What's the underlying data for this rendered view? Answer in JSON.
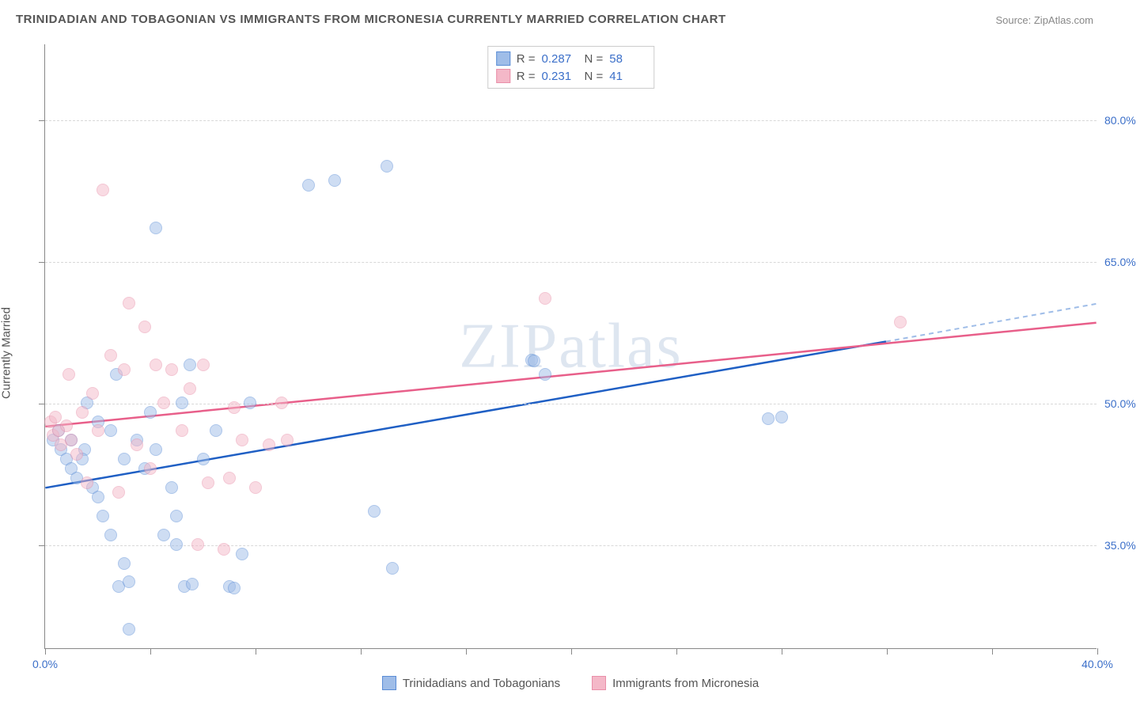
{
  "title": "TRINIDADIAN AND TOBAGONIAN VS IMMIGRANTS FROM MICRONESIA CURRENTLY MARRIED CORRELATION CHART",
  "source": "Source: ZipAtlas.com",
  "watermark": "ZIPatlas",
  "y_axis_label": "Currently Married",
  "chart": {
    "type": "scatter",
    "xlim": [
      0,
      40
    ],
    "ylim": [
      24,
      88
    ],
    "x_ticks": [
      0,
      4,
      8,
      12,
      16,
      20,
      24,
      28,
      32,
      36,
      40
    ],
    "x_tick_labels": {
      "0": "0.0%",
      "40": "40.0%"
    },
    "y_grid": [
      35,
      50,
      65,
      80
    ],
    "y_tick_labels": {
      "35": "35.0%",
      "50": "50.0%",
      "65": "65.0%",
      "80": "80.0%"
    },
    "background_color": "#ffffff",
    "grid_color": "#d8d8d8",
    "axis_color": "#888888",
    "tick_label_color": "#3b6fc9",
    "point_radius": 8,
    "point_opacity": 0.5,
    "series": [
      {
        "key": "trinidadian",
        "label": "Trinidadians and Tobagonians",
        "fill": "#9fbde8",
        "stroke": "#5b8dd6",
        "trend_color": "#1f5fc4",
        "trend_dash_color": "#9fbde8",
        "R": "0.287",
        "N": "58",
        "trend": {
          "x1": 0,
          "y1": 41,
          "x2": 32,
          "y2": 56.5,
          "x2_ext": 40,
          "y2_ext": 60.5
        },
        "points": [
          [
            0.3,
            46
          ],
          [
            0.6,
            45
          ],
          [
            0.5,
            47
          ],
          [
            0.8,
            44
          ],
          [
            1.0,
            43
          ],
          [
            1.0,
            46
          ],
          [
            1.2,
            42
          ],
          [
            1.5,
            45
          ],
          [
            1.4,
            44
          ],
          [
            1.8,
            41
          ],
          [
            2.0,
            40
          ],
          [
            2.2,
            38
          ],
          [
            2.5,
            36
          ],
          [
            2.8,
            30.5
          ],
          [
            3.0,
            33
          ],
          [
            3.2,
            31
          ],
          [
            1.6,
            50
          ],
          [
            2.0,
            48
          ],
          [
            2.5,
            47
          ],
          [
            2.7,
            53
          ],
          [
            3.0,
            44
          ],
          [
            3.5,
            46
          ],
          [
            3.8,
            43
          ],
          [
            4.0,
            49
          ],
          [
            4.2,
            45
          ],
          [
            4.5,
            36
          ],
          [
            5.0,
            35
          ],
          [
            5.3,
            30.5
          ],
          [
            5.6,
            30.8
          ],
          [
            5.0,
            38
          ],
          [
            4.8,
            41
          ],
          [
            5.2,
            50
          ],
          [
            5.5,
            54
          ],
          [
            6.0,
            44
          ],
          [
            6.5,
            47
          ],
          [
            7.0,
            30.5
          ],
          [
            7.2,
            30.4
          ],
          [
            7.5,
            34
          ],
          [
            7.8,
            50
          ],
          [
            3.2,
            26
          ],
          [
            4.2,
            68.5
          ],
          [
            11.0,
            73.5
          ],
          [
            10.0,
            73
          ],
          [
            13.0,
            75
          ],
          [
            12.5,
            38.5
          ],
          [
            13.2,
            32.5
          ],
          [
            18.5,
            54.5
          ],
          [
            18.6,
            54.4
          ],
          [
            19.0,
            53
          ],
          [
            28.0,
            48.5
          ],
          [
            27.5,
            48.3
          ]
        ]
      },
      {
        "key": "micronesia",
        "label": "Immigrants from Micronesia",
        "fill": "#f4b8c8",
        "stroke": "#e98fa9",
        "trend_color": "#e85f8a",
        "R": "0.231",
        "N": "41",
        "trend": {
          "x1": 0,
          "y1": 47.5,
          "x2": 40,
          "y2": 58.5
        },
        "points": [
          [
            0.2,
            48
          ],
          [
            0.3,
            46.5
          ],
          [
            0.4,
            48.5
          ],
          [
            0.5,
            47
          ],
          [
            0.6,
            45.5
          ],
          [
            0.8,
            47.5
          ],
          [
            0.9,
            53
          ],
          [
            1.0,
            46
          ],
          [
            1.2,
            44.5
          ],
          [
            1.4,
            49
          ],
          [
            1.6,
            41.5
          ],
          [
            1.8,
            51
          ],
          [
            2.0,
            47
          ],
          [
            2.2,
            72.5
          ],
          [
            2.5,
            55
          ],
          [
            2.8,
            40.5
          ],
          [
            3.0,
            53.5
          ],
          [
            3.2,
            60.5
          ],
          [
            3.5,
            45.5
          ],
          [
            3.8,
            58
          ],
          [
            4.0,
            43
          ],
          [
            4.2,
            54
          ],
          [
            4.5,
            50
          ],
          [
            4.8,
            53.5
          ],
          [
            5.2,
            47
          ],
          [
            5.5,
            51.5
          ],
          [
            5.8,
            35
          ],
          [
            6.0,
            54
          ],
          [
            6.2,
            41.5
          ],
          [
            6.8,
            34.5
          ],
          [
            7.0,
            42
          ],
          [
            7.2,
            49.5
          ],
          [
            7.5,
            46
          ],
          [
            8.0,
            41
          ],
          [
            8.5,
            45.5
          ],
          [
            9.0,
            50
          ],
          [
            9.2,
            46
          ],
          [
            19.0,
            61
          ],
          [
            32.5,
            58.5
          ]
        ]
      }
    ]
  },
  "legend_top_labels": {
    "R": "R =",
    "N": "N ="
  }
}
